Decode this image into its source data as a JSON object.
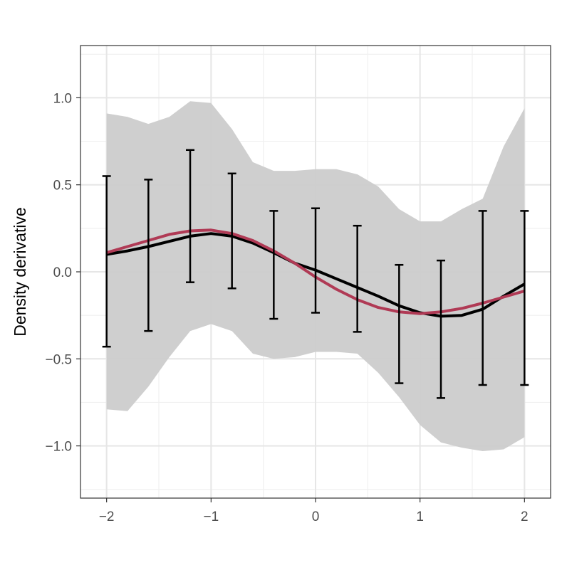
{
  "chart_data": {
    "type": "line",
    "title": "",
    "xlabel": "",
    "ylabel": "Density derivative",
    "xlim": [
      -2.25,
      2.25
    ],
    "ylim": [
      -1.3,
      1.3
    ],
    "grid": true,
    "legend": "none",
    "x_ticks": [
      -2,
      -1,
      0,
      1,
      2
    ],
    "x_tick_labels": [
      "−2",
      "−1",
      "0",
      "1",
      "2"
    ],
    "y_ticks": [
      -1.0,
      -0.5,
      0.0,
      0.5,
      1.0
    ],
    "y_tick_labels": [
      "−1.0",
      "−0.5",
      "0.0",
      "0.5",
      "1.0"
    ],
    "ribbon": {
      "color": "#cccccc",
      "x": [
        -2.0,
        -1.8,
        -1.6,
        -1.4,
        -1.2,
        -1.0,
        -0.8,
        -0.6,
        -0.4,
        -0.2,
        0.0,
        0.2,
        0.4,
        0.6,
        0.8,
        1.0,
        1.2,
        1.4,
        1.6,
        1.8,
        2.0
      ],
      "upper": [
        0.91,
        0.89,
        0.85,
        0.89,
        0.98,
        0.97,
        0.82,
        0.63,
        0.58,
        0.58,
        0.59,
        0.59,
        0.56,
        0.49,
        0.36,
        0.29,
        0.29,
        0.36,
        0.42,
        0.72,
        0.94
      ],
      "lower": [
        -0.79,
        -0.8,
        -0.66,
        -0.49,
        -0.34,
        -0.3,
        -0.34,
        -0.47,
        -0.5,
        -0.49,
        -0.46,
        -0.46,
        -0.47,
        -0.58,
        -0.72,
        -0.88,
        -0.98,
        -1.01,
        -1.03,
        -1.02,
        -0.95
      ]
    },
    "series": [
      {
        "color": "#000000",
        "x": [
          -2.0,
          -1.8,
          -1.6,
          -1.4,
          -1.2,
          -1.0,
          -0.8,
          -0.6,
          -0.4,
          -0.2,
          0.0,
          0.2,
          0.4,
          0.6,
          0.8,
          1.0,
          1.2,
          1.4,
          1.6,
          1.8,
          2.0
        ],
        "y": [
          0.1,
          0.12,
          0.145,
          0.175,
          0.205,
          0.22,
          0.205,
          0.165,
          0.11,
          0.05,
          0.01,
          -0.04,
          -0.09,
          -0.14,
          -0.195,
          -0.235,
          -0.255,
          -0.25,
          -0.215,
          -0.14,
          -0.07
        ]
      },
      {
        "color": "#b03a55",
        "x": [
          -2.0,
          -1.8,
          -1.6,
          -1.4,
          -1.2,
          -1.0,
          -0.8,
          -0.6,
          -0.4,
          -0.2,
          0.0,
          0.2,
          0.4,
          0.6,
          0.8,
          1.0,
          1.2,
          1.4,
          1.6,
          1.8,
          2.0
        ],
        "y": [
          0.11,
          0.145,
          0.18,
          0.215,
          0.235,
          0.24,
          0.22,
          0.18,
          0.12,
          0.05,
          -0.03,
          -0.1,
          -0.16,
          -0.205,
          -0.23,
          -0.24,
          -0.23,
          -0.21,
          -0.18,
          -0.145,
          -0.11
        ]
      }
    ],
    "error_bars": {
      "color": "#000000",
      "x": [
        -2.0,
        -1.6,
        -1.2,
        -0.8,
        -0.4,
        0.0,
        0.4,
        0.8,
        1.2,
        1.6,
        2.0
      ],
      "lower": [
        -0.43,
        -0.34,
        -0.06,
        -0.095,
        -0.27,
        -0.235,
        -0.345,
        -0.64,
        -0.725,
        -0.65,
        -0.65
      ],
      "upper": [
        0.55,
        0.53,
        0.7,
        0.565,
        0.35,
        0.365,
        0.265,
        0.04,
        0.065,
        0.35,
        0.35
      ]
    }
  }
}
